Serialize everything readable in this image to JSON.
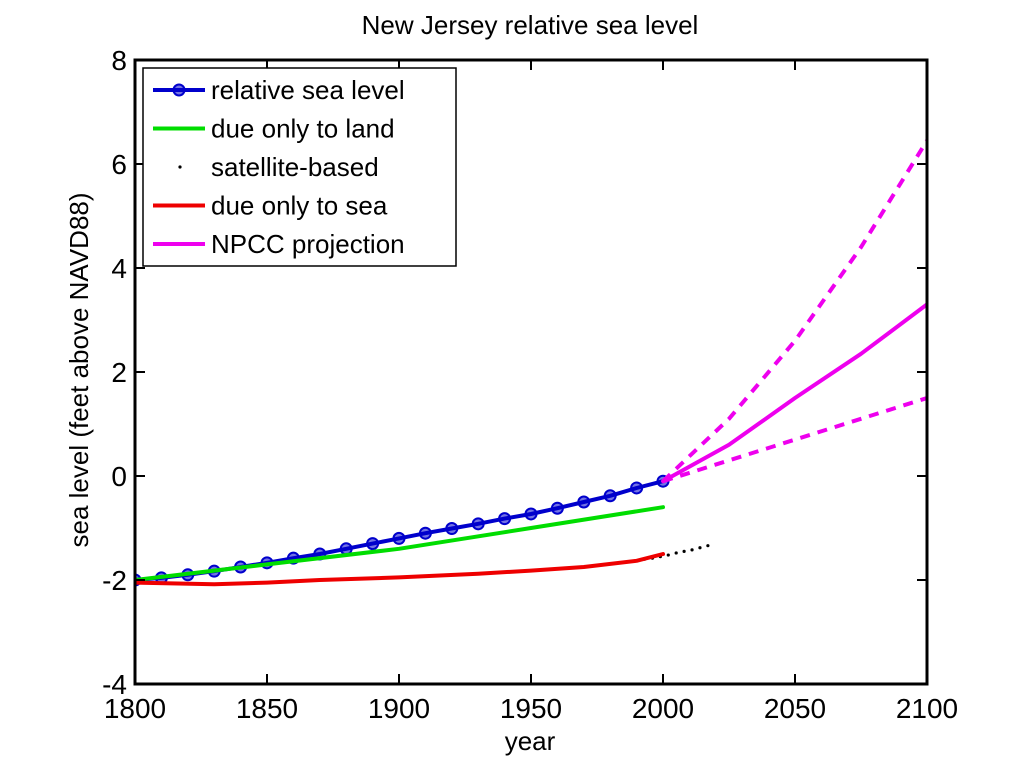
{
  "chart_data": {
    "type": "line",
    "title": "New Jersey relative sea level",
    "xlabel": "year",
    "ylabel": "sea level (feet above NAVD88)",
    "xlim": [
      1800,
      2100
    ],
    "ylim": [
      -4,
      8
    ],
    "xticks": [
      1800,
      1850,
      1900,
      1950,
      2000,
      2050,
      2100
    ],
    "yticks": [
      -4,
      -2,
      0,
      2,
      4,
      6,
      8
    ],
    "legend_position": "top-left",
    "grid": false,
    "series": [
      {
        "name": "relative sea level",
        "color": "#0000cc",
        "style": "solid-with-circle-markers",
        "x": [
          1800,
          1810,
          1820,
          1830,
          1840,
          1850,
          1860,
          1870,
          1880,
          1890,
          1900,
          1910,
          1920,
          1930,
          1940,
          1950,
          1960,
          1970,
          1980,
          1990,
          2000
        ],
        "y": [
          -2.0,
          -1.96,
          -1.9,
          -1.83,
          -1.75,
          -1.67,
          -1.58,
          -1.5,
          -1.4,
          -1.3,
          -1.2,
          -1.1,
          -1.01,
          -0.92,
          -0.82,
          -0.73,
          -0.62,
          -0.5,
          -0.38,
          -0.23,
          -0.1
        ]
      },
      {
        "name": "due only to land",
        "color": "#00dd00",
        "style": "solid",
        "x": [
          1800,
          1850,
          1900,
          1950,
          2000
        ],
        "y": [
          -2.0,
          -1.7,
          -1.4,
          -1.0,
          -0.6
        ]
      },
      {
        "name": "satellite-based",
        "color": "#000000",
        "style": "dots",
        "x": [
          1993,
          1996,
          1999,
          2002,
          2005,
          2008,
          2011,
          2014,
          2017
        ],
        "y": [
          -1.6,
          -1.58,
          -1.55,
          -1.52,
          -1.48,
          -1.45,
          -1.42,
          -1.38,
          -1.34
        ]
      },
      {
        "name": "due only to sea",
        "color": "#ee0000",
        "style": "solid",
        "x": [
          1800,
          1830,
          1850,
          1870,
          1900,
          1930,
          1950,
          1970,
          1990,
          2000
        ],
        "y": [
          -2.05,
          -2.08,
          -2.05,
          -2.0,
          -1.95,
          -1.88,
          -1.82,
          -1.75,
          -1.63,
          -1.5
        ]
      },
      {
        "name": "NPCC projection",
        "color": "#ee00ee",
        "style": "solid",
        "x": [
          2000,
          2025,
          2050,
          2075,
          2100
        ],
        "y": [
          -0.1,
          0.6,
          1.5,
          2.35,
          3.3
        ]
      },
      {
        "color": "#ee00ee",
        "style": "dashed",
        "x": [
          2000,
          2025,
          2050,
          2075,
          2100
        ],
        "y": [
          -0.1,
          1.1,
          2.6,
          4.4,
          6.45
        ]
      },
      {
        "color": "#ee00ee",
        "style": "dashed",
        "x": [
          2000,
          2025,
          2050,
          2075,
          2100
        ],
        "y": [
          -0.1,
          0.3,
          0.7,
          1.1,
          1.5
        ]
      }
    ],
    "legend": [
      {
        "label": "relative sea level",
        "color": "#0000cc",
        "marker": "circle"
      },
      {
        "label": "due only to land",
        "color": "#00dd00",
        "marker": "none"
      },
      {
        "label": "satellite-based",
        "color": "#000000",
        "marker": "dot"
      },
      {
        "label": "due only to sea",
        "color": "#ee0000",
        "marker": "none"
      },
      {
        "label": "NPCC projection",
        "color": "#ee00ee",
        "marker": "none"
      }
    ]
  }
}
